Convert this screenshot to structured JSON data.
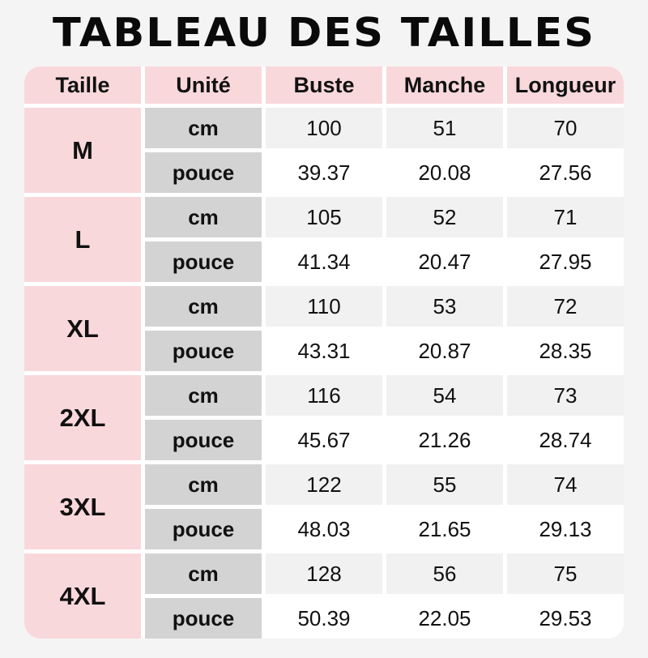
{
  "page": {
    "title": "TABLEAU DES TAILLES",
    "background_color": "#f5f4f4",
    "text_color": "#111111"
  },
  "colors": {
    "header_pink": "#f9d8dc",
    "unit_gray": "#d3d3d3",
    "cm_row_light": "#f1f1f1",
    "pouce_row_white": "#ffffff",
    "container_white": "#ffffff"
  },
  "table": {
    "headers": [
      "Taille",
      "Unité",
      "Buste",
      "Manche",
      "Longueur"
    ],
    "rows": [
      {
        "size": "M",
        "cm_label": "cm",
        "pouce_label": "pouce",
        "cm": [
          "100",
          "51",
          "70"
        ],
        "pouce": [
          "39.37",
          "20.08",
          "27.56"
        ]
      },
      {
        "size": "L",
        "cm_label": "cm",
        "pouce_label": "pouce",
        "cm": [
          "105",
          "52",
          "71"
        ],
        "pouce": [
          "41.34",
          "20.47",
          "27.95"
        ]
      },
      {
        "size": "XL",
        "cm_label": "cm",
        "pouce_label": "pouce",
        "cm": [
          "110",
          "53",
          "72"
        ],
        "pouce": [
          "43.31",
          "20.87",
          "28.35"
        ]
      },
      {
        "size": "2XL",
        "cm_label": "cm",
        "pouce_label": "pouce",
        "cm": [
          "116",
          "54",
          "73"
        ],
        "pouce": [
          "45.67",
          "21.26",
          "28.74"
        ]
      },
      {
        "size": "3XL",
        "cm_label": "cm",
        "pouce_label": "pouce",
        "cm": [
          "122",
          "55",
          "74"
        ],
        "pouce": [
          "48.03",
          "21.65",
          "29.13"
        ]
      },
      {
        "size": "4XL",
        "cm_label": "cm",
        "pouce_label": "pouce",
        "cm": [
          "128",
          "56",
          "75"
        ],
        "pouce": [
          "50.39",
          "22.05",
          "29.53"
        ]
      }
    ]
  },
  "chart_data": {
    "type": "table",
    "title": "TABLEAU DES TAILLES",
    "columns": [
      "Taille",
      "Unité",
      "Buste",
      "Manche",
      "Longueur"
    ],
    "rows": [
      [
        "M",
        "cm",
        100,
        51,
        70
      ],
      [
        "M",
        "pouce",
        39.37,
        20.08,
        27.56
      ],
      [
        "L",
        "cm",
        105,
        52,
        71
      ],
      [
        "L",
        "pouce",
        41.34,
        20.47,
        27.95
      ],
      [
        "XL",
        "cm",
        110,
        53,
        72
      ],
      [
        "XL",
        "pouce",
        43.31,
        20.87,
        28.35
      ],
      [
        "2XL",
        "cm",
        116,
        54,
        73
      ],
      [
        "2XL",
        "pouce",
        45.67,
        21.26,
        28.74
      ],
      [
        "3XL",
        "cm",
        122,
        55,
        74
      ],
      [
        "3XL",
        "pouce",
        48.03,
        21.65,
        29.13
      ],
      [
        "4XL",
        "cm",
        128,
        56,
        75
      ],
      [
        "4XL",
        "pouce",
        50.39,
        22.05,
        29.53
      ]
    ],
    "legend_position": "none",
    "grid": false
  }
}
